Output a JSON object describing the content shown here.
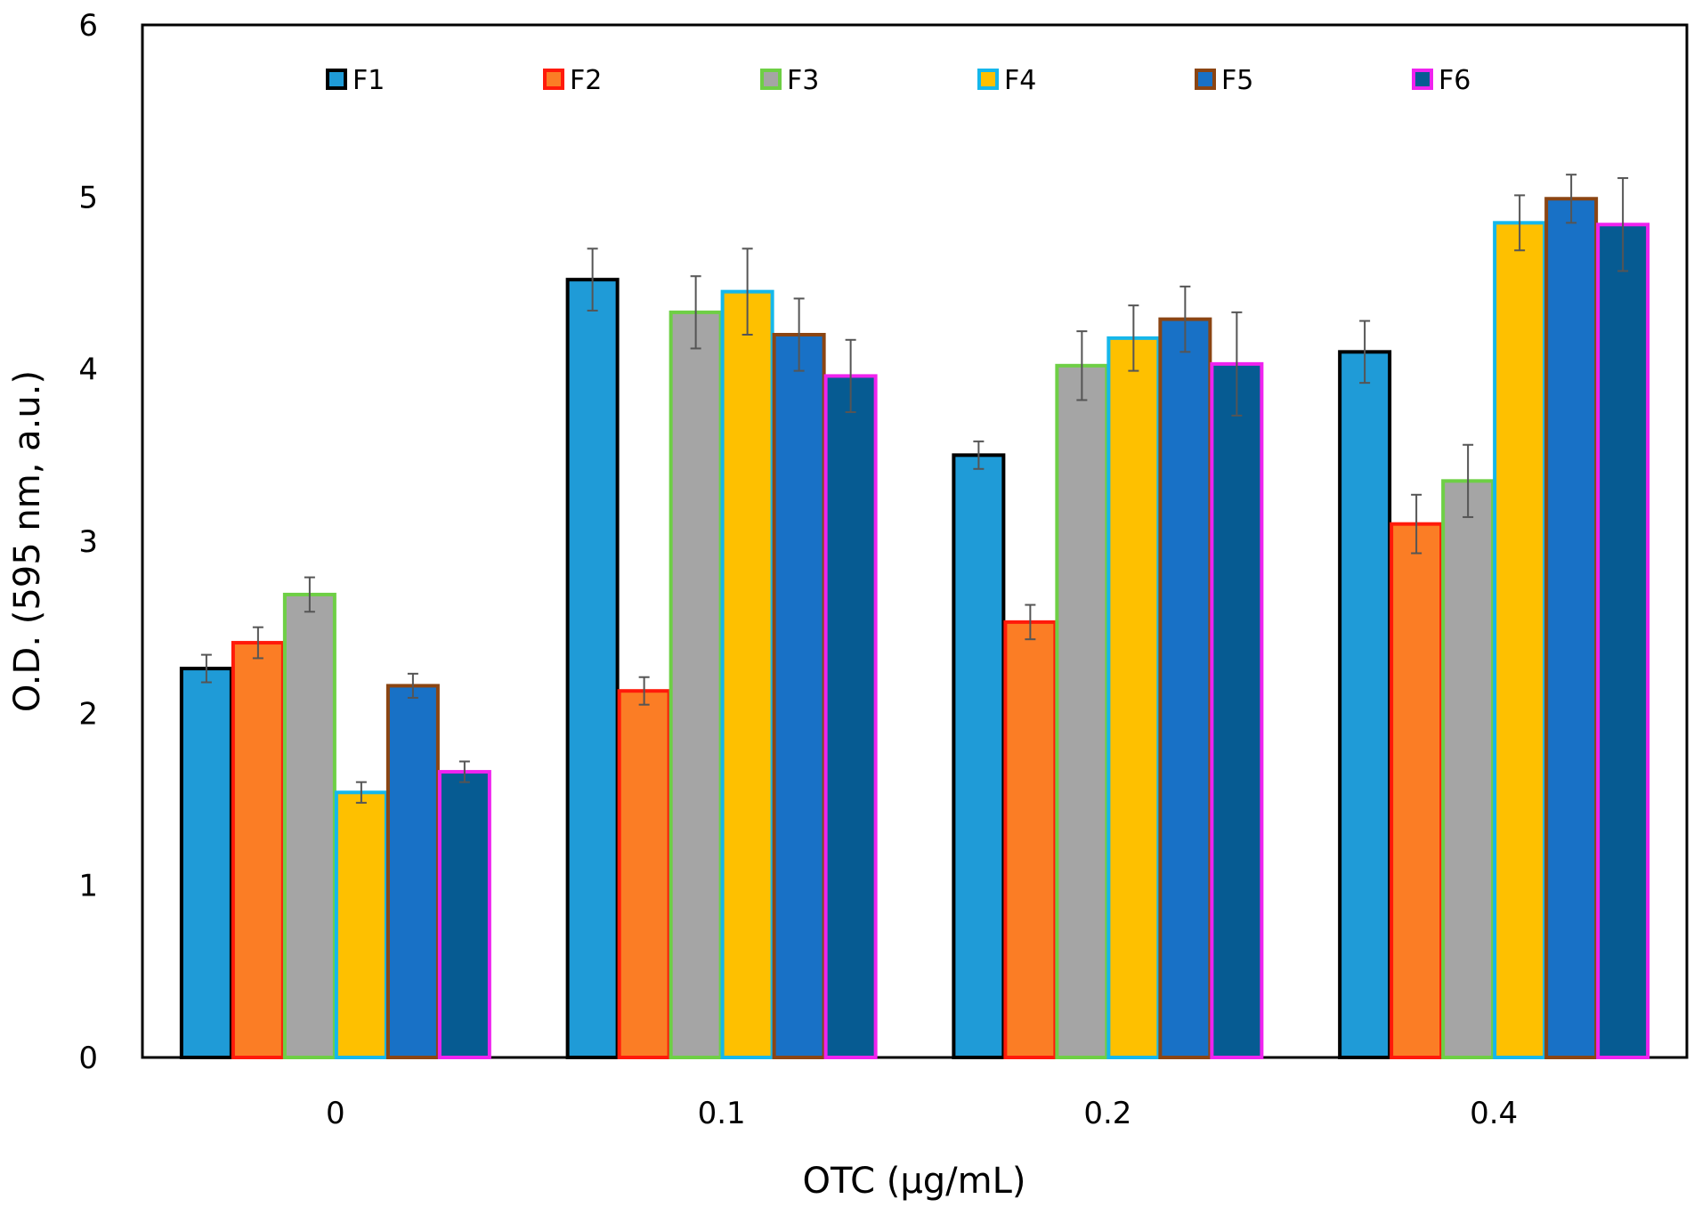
{
  "chart_data": {
    "type": "bar",
    "xlabel": "OTC (µg/mL)",
    "ylabel": "O.D. (595 nm, a.u.)",
    "categories": [
      "0",
      "0.1",
      "0.2",
      "0.4"
    ],
    "ylim": [
      0,
      6
    ],
    "yticks": [
      0,
      1,
      2,
      3,
      4,
      5,
      6
    ],
    "grid": false,
    "legend_position": "top",
    "error_bars": true,
    "series": [
      {
        "name": "F1",
        "fill": "#1f9bd7",
        "border": "#000000",
        "values": [
          2.26,
          4.52,
          3.5,
          4.1
        ],
        "errors": [
          0.08,
          0.18,
          0.08,
          0.18
        ]
      },
      {
        "name": "F2",
        "fill": "#fb7d25",
        "border": "#ff1a0a",
        "values": [
          2.41,
          2.13,
          2.53,
          3.1
        ],
        "errors": [
          0.09,
          0.08,
          0.1,
          0.17
        ]
      },
      {
        "name": "F3",
        "fill": "#a5a5a5",
        "border": "#6ecf45",
        "values": [
          2.69,
          4.33,
          4.02,
          3.35
        ],
        "errors": [
          0.1,
          0.21,
          0.2,
          0.21
        ]
      },
      {
        "name": "F4",
        "fill": "#fec000",
        "border": "#15b7eb",
        "values": [
          1.54,
          4.45,
          4.18,
          4.85
        ],
        "errors": [
          0.06,
          0.25,
          0.19,
          0.16
        ]
      },
      {
        "name": "F5",
        "fill": "#1871c6",
        "border": "#8b4513",
        "values": [
          2.16,
          4.2,
          4.29,
          4.99
        ],
        "errors": [
          0.07,
          0.21,
          0.19,
          0.14
        ]
      },
      {
        "name": "F6",
        "fill": "#065b92",
        "border": "#ef23ef",
        "values": [
          1.66,
          3.96,
          4.03,
          4.84
        ],
        "errors": [
          0.06,
          0.21,
          0.3,
          0.27
        ]
      }
    ]
  }
}
